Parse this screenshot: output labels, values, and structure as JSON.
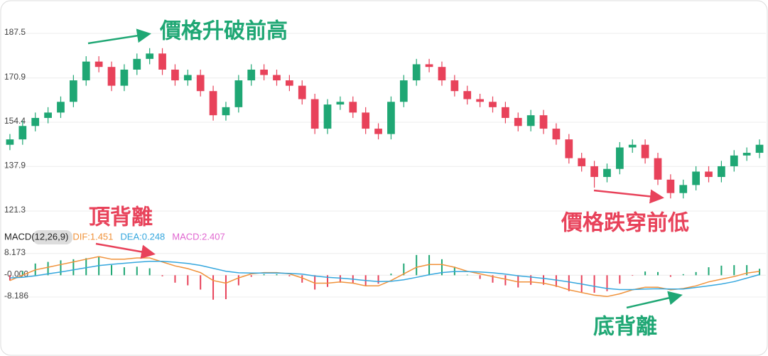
{
  "chart_data": [
    {
      "type": "candlestick",
      "ylim": [
        121.3,
        187.5
      ],
      "yticks": [
        187.5,
        170.9,
        154.4,
        137.9,
        121.3
      ],
      "grid": true,
      "up_color": "#1fa774",
      "down_color": "#e8425a",
      "annotations": [
        "價格升破前高",
        "價格跌穿前低"
      ],
      "open": [
        146,
        148,
        153,
        156,
        158,
        162,
        170,
        177,
        175,
        168,
        174,
        178,
        180,
        174,
        170,
        172,
        166,
        157,
        160,
        170,
        174,
        172,
        170,
        168,
        163,
        152,
        161,
        162,
        158,
        152,
        150,
        162,
        170,
        176,
        175,
        170,
        166,
        163,
        162,
        160,
        156,
        153,
        157,
        152,
        148,
        141,
        138,
        134,
        137,
        145,
        146,
        141,
        133,
        128,
        131,
        136,
        134,
        138,
        142,
        143
      ],
      "high": [
        150,
        155,
        158,
        160,
        164,
        172,
        179,
        179,
        177,
        176,
        180,
        182,
        182,
        176,
        174,
        174,
        168,
        162,
        172,
        176,
        176,
        174,
        172,
        170,
        165,
        163,
        164,
        164,
        160,
        154,
        164,
        172,
        178,
        178,
        177,
        172,
        168,
        165,
        164,
        162,
        158,
        159,
        159,
        154,
        150,
        143,
        140,
        139,
        147,
        148,
        148,
        143,
        135,
        133,
        138,
        138,
        140,
        144,
        145,
        148
      ],
      "low": [
        144,
        146,
        151,
        154,
        156,
        160,
        168,
        173,
        166,
        166,
        172,
        176,
        172,
        168,
        168,
        164,
        155,
        155,
        158,
        168,
        170,
        168,
        166,
        161,
        150,
        150,
        159,
        156,
        150,
        148,
        148,
        160,
        168,
        173,
        168,
        164,
        161,
        160,
        158,
        154,
        151,
        151,
        150,
        146,
        139,
        136,
        130,
        132,
        135,
        143,
        139,
        131,
        126,
        126,
        129,
        132,
        132,
        136,
        140,
        141
      ],
      "close": [
        148,
        153,
        156,
        158,
        162,
        170,
        177,
        175,
        168,
        174,
        178,
        180,
        174,
        170,
        172,
        166,
        157,
        160,
        170,
        174,
        172,
        170,
        168,
        163,
        152,
        161,
        162,
        158,
        152,
        150,
        162,
        170,
        176,
        175,
        170,
        166,
        163,
        162,
        160,
        156,
        153,
        157,
        152,
        148,
        141,
        138,
        134,
        137,
        145,
        146,
        141,
        133,
        128,
        131,
        136,
        134,
        138,
        142,
        143,
        146
      ]
    },
    {
      "type": "macd",
      "title": "MACD(12,26,9)",
      "ylim": [
        -11,
        10.5
      ],
      "yticks": [
        8.173,
        {
          "value": 0,
          "label": "-0.000"
        },
        -8.186
      ],
      "grid": true,
      "annotations": [
        "頂背離",
        "底背離"
      ],
      "series": [
        {
          "name": "DIF:1.451",
          "color": "#f0923a",
          "style": "line",
          "values": [
            -2,
            0,
            2,
            3,
            4,
            5,
            6,
            7,
            6,
            6,
            6.5,
            6.5,
            5,
            3.5,
            2.5,
            1,
            -2,
            -3,
            -1,
            0.5,
            1,
            1,
            0.5,
            -1,
            -3,
            -3,
            -2.5,
            -3,
            -4,
            -4,
            -2,
            0.5,
            3,
            4,
            4,
            3,
            1.5,
            0.5,
            -0.5,
            -1.5,
            -2.5,
            -2.5,
            -3,
            -4,
            -5.5,
            -6.5,
            -7.5,
            -8,
            -7,
            -5.5,
            -4.5,
            -4.5,
            -5.5,
            -5,
            -4,
            -2.5,
            -1.5,
            -0.5,
            0.8,
            1.451
          ]
        },
        {
          "name": "DEA:0.248",
          "color": "#35a7de",
          "style": "line",
          "values": [
            -1,
            -0.8,
            -0.2,
            0.5,
            1.2,
            2,
            2.8,
            3.6,
            4.1,
            4.5,
            4.9,
            5.2,
            5.2,
            4.9,
            4.4,
            3.7,
            2.6,
            1.5,
            0.9,
            0.8,
            0.8,
            0.8,
            0.7,
            0.4,
            -0.3,
            -0.8,
            -1.1,
            -1.5,
            -2,
            -2.4,
            -2.3,
            -1.7,
            -0.8,
            0.2,
            1,
            1.4,
            1.4,
            1.2,
            0.9,
            0.4,
            -0.2,
            -0.7,
            -1.2,
            -1.8,
            -2.5,
            -3.3,
            -4.2,
            -5,
            -5.4,
            -5.4,
            -5.2,
            -5.1,
            -5.2,
            -5.2,
            -4.6,
            -4,
            -3.3,
            -2.4,
            -1.1,
            0.248
          ]
        },
        {
          "name": "MACD:2.407",
          "color": "#e066d0",
          "style": "bar",
          "up_color": "#1fa774",
          "down_color": "#e8425a",
          "values": [
            -2,
            1.6,
            4.4,
            5,
            5.6,
            6,
            6.4,
            6.8,
            3.8,
            3,
            3.2,
            2.6,
            -0.4,
            -2.8,
            -3.8,
            -5.4,
            -9.2,
            -9,
            -3.8,
            -0.6,
            0.4,
            0.4,
            -0.4,
            -2.8,
            -5.4,
            -4.4,
            -2.8,
            -3,
            -4,
            -3.2,
            0.6,
            4.4,
            7.6,
            7.6,
            6,
            3.2,
            0.2,
            -1.4,
            -2.8,
            -3.8,
            -4.6,
            -3.6,
            -3.6,
            -4.4,
            -6,
            -6.4,
            -6.6,
            -6,
            -3.2,
            -0.2,
            1.4,
            1.2,
            -0.6,
            0.4,
            1.2,
            3,
            3.6,
            3.8,
            3.8,
            2.407
          ]
        }
      ]
    }
  ]
}
